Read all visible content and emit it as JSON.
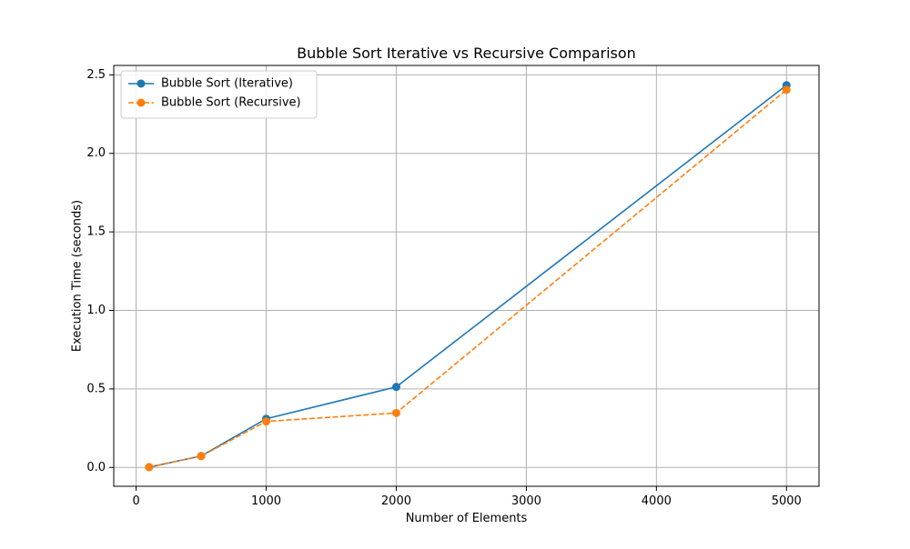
{
  "chart_data": {
    "type": "line",
    "title": "Bubble Sort Iterative vs Recursive Comparison",
    "xlabel": "Number of Elements",
    "ylabel": "Execution Time (seconds)",
    "x": [
      100,
      500,
      1000,
      2000,
      5000
    ],
    "series": [
      {
        "name": "Bubble Sort (Iterative)",
        "values": [
          0.002,
          0.073,
          0.31,
          0.513,
          2.434
        ],
        "color": "#1f77b4",
        "line_style": "solid",
        "marker": "circle"
      },
      {
        "name": "Bubble Sort (Recursive)",
        "values": [
          0.002,
          0.072,
          0.293,
          0.347,
          2.405
        ],
        "color": "#ff7f0e",
        "line_style": "dashed",
        "marker": "circle"
      }
    ],
    "xlim": [
      -172,
      5250
    ],
    "ylim": [
      -0.12,
      2.56
    ],
    "xticks": [
      0,
      1000,
      2000,
      3000,
      4000,
      5000
    ],
    "xtick_labels": [
      "0",
      "1000",
      "2000",
      "3000",
      "4000",
      "5000"
    ],
    "yticks": [
      0.0,
      0.5,
      1.0,
      1.5,
      2.0,
      2.5
    ],
    "ytick_labels": [
      "0.0",
      "0.5",
      "1.0",
      "1.5",
      "2.0",
      "2.5"
    ],
    "grid": true,
    "legend_position": "top-left"
  }
}
